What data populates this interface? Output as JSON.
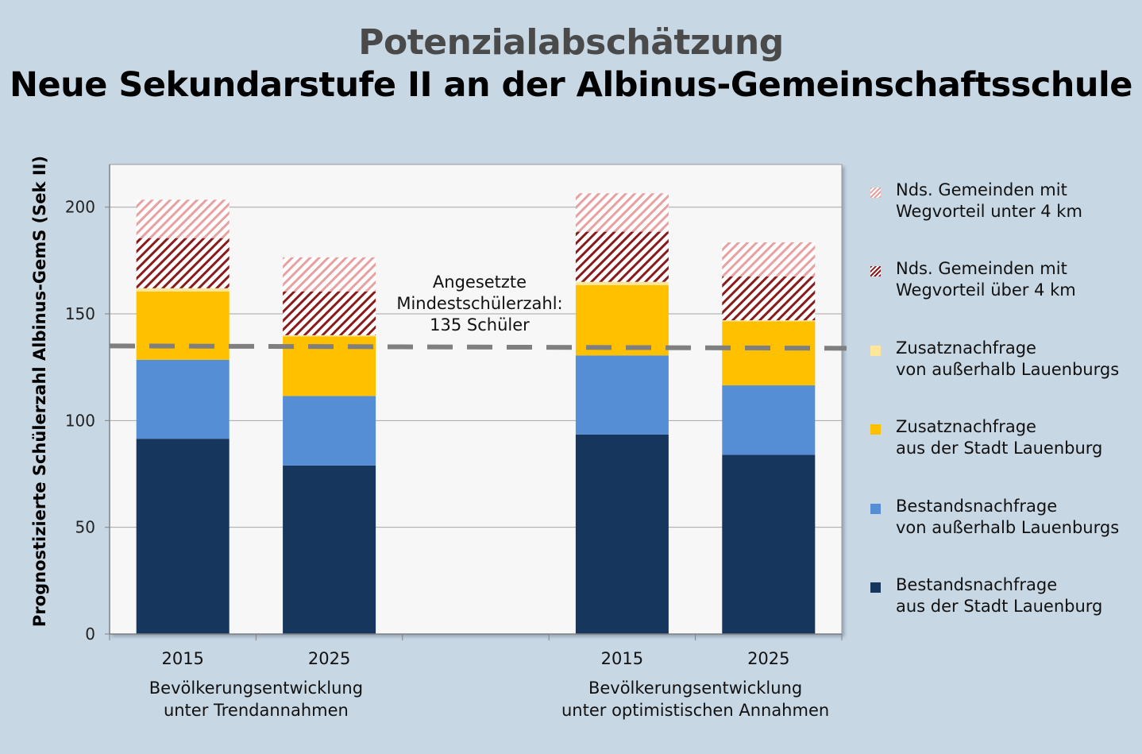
{
  "title": "Potenzialabschätzung",
  "subtitle": "Neue Sekundarstufe II an der Albinus-Gemeinschaftsschule",
  "colors": {
    "background": "#c8d7e4",
    "plot_background": "#f7f7f7",
    "bestand_stadt": "#17365d",
    "bestand_ausserhalb": "#558ed5",
    "zusatz_stadt": "#ffc000",
    "zusatz_ausserhalb": "#ffe699",
    "nds_ueber": "#8b1a1a",
    "nds_unter": "#e8a0a0",
    "threshold": "#7f7f7f"
  },
  "chart_data": {
    "type": "bar",
    "stacked": true,
    "ylabel": "Prognostizierte Schülerzahl Albinus-GemS (Sek II)",
    "ylim": [
      0,
      220
    ],
    "yticks": [
      0,
      50,
      100,
      150,
      200
    ],
    "categories": [
      "2015",
      "2025",
      "",
      "2015",
      "2025"
    ],
    "groups": [
      {
        "line1": "Bevölkerungsentwicklung",
        "line2": "unter Trendannahmen"
      },
      {
        "line1": "Bevölkerungsentwicklung",
        "line2": "unter optimistischen Annahmen"
      }
    ],
    "series": [
      {
        "name": "Bestandsnachfrage aus der Stadt Lauenburg",
        "legend": [
          "Bestandsnachfrage",
          "aus der Stadt Lauenburg"
        ],
        "color_key": "bestand_stadt",
        "pattern": "solid",
        "values": [
          91.5,
          79,
          null,
          93.5,
          84
        ]
      },
      {
        "name": "Bestandsnachfrage von außerhalb Lauenburgs",
        "legend": [
          "Bestandsnachfrage",
          "von außerhalb Lauenburgs"
        ],
        "color_key": "bestand_ausserhalb",
        "pattern": "solid",
        "values": [
          37,
          32.5,
          null,
          37,
          32.5
        ]
      },
      {
        "name": "Zusatznachfrage aus der Stadt Lauenburg",
        "legend": [
          "Zusatznachfrage",
          "aus der Stadt Lauenburg"
        ],
        "color_key": "zusatz_stadt",
        "pattern": "solid",
        "values": [
          32,
          28,
          null,
          33,
          30
        ]
      },
      {
        "name": "Zusatznachfrage von außerhalb Lauenburgs",
        "legend": [
          "Zusatznachfrage",
          "von außerhalb Lauenburgs"
        ],
        "color_key": "zusatz_ausserhalb",
        "pattern": "solid",
        "values": [
          1.5,
          0.5,
          null,
          1.5,
          0.5
        ]
      },
      {
        "name": "Nds. Gemeinden mit Wegvorteil über 4 km",
        "legend": [
          "Nds. Gemeinden mit",
          "Wegvorteil über 4 km"
        ],
        "color_key": "nds_ueber",
        "pattern": "hatch",
        "values": [
          23.5,
          20.5,
          null,
          23.5,
          20.5
        ]
      },
      {
        "name": "Nds. Gemeinden mit Wegvorteil unter 4 km",
        "legend": [
          "Nds. Gemeinden mit",
          "Wegvorteil unter 4 km"
        ],
        "color_key": "nds_unter",
        "pattern": "hatch",
        "values": [
          18,
          16,
          null,
          18,
          16
        ]
      }
    ],
    "threshold": {
      "value": 135,
      "label": [
        "Angesetzte",
        "Mindestschülerzahl:",
        "135 Schüler"
      ]
    }
  }
}
